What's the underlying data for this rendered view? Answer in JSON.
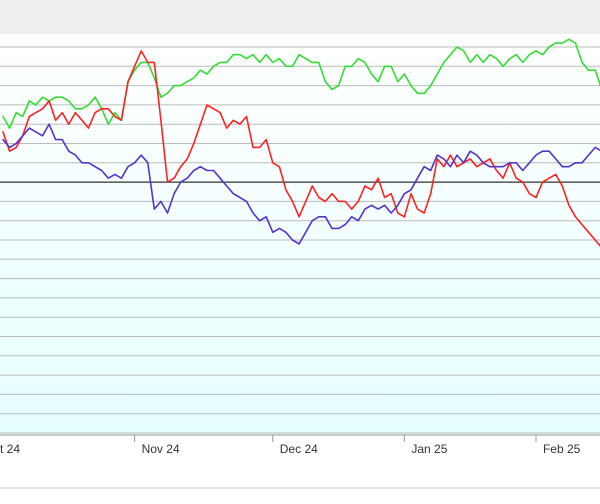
{
  "chart_data": {
    "type": "line",
    "title": "",
    "xlabel": "",
    "ylabel": "",
    "grid": true,
    "legend": "none",
    "x_tick_labels": [
      "ct 24",
      "Nov 24",
      "Dec 24",
      "Jan 25",
      "Feb 25"
    ],
    "x_tick_index": [
      0,
      20,
      41,
      61,
      81
    ],
    "ylim": [
      0,
      100
    ],
    "grid_values": [
      100,
      95,
      90,
      85,
      80,
      75,
      70,
      65,
      60,
      55,
      50,
      45,
      40,
      35,
      30,
      25,
      20,
      15,
      10,
      5,
      0
    ],
    "reference_line": 65,
    "colors": {
      "background_top": "#ffffff",
      "background_bottom": "#e6ffff",
      "grid": "#bbbbbb",
      "reference": "#333333",
      "header": "#eeeeee"
    },
    "series": [
      {
        "color": "#33dd33",
        "values": [
          82,
          79,
          83,
          82,
          86,
          85,
          87,
          86,
          87,
          87,
          86,
          84,
          84,
          85,
          87,
          84,
          80,
          83,
          81,
          91,
          94,
          96,
          96,
          92,
          87,
          88,
          90,
          90,
          91,
          92,
          94,
          93,
          95,
          96,
          96,
          98,
          98,
          97,
          98,
          96,
          98,
          96,
          97,
          95,
          95,
          98,
          97,
          96,
          96,
          91,
          89,
          90,
          95,
          95,
          97,
          96,
          93,
          91,
          95,
          95,
          91,
          93,
          90,
          88,
          88,
          90,
          93,
          96,
          98,
          100,
          99,
          96,
          98,
          96,
          98,
          97,
          95,
          97,
          98,
          96,
          98,
          99,
          98,
          100,
          101,
          101,
          102,
          101,
          96,
          94,
          94,
          89
        ]
      },
      {
        "color": "#ff2222",
        "values": [
          78,
          73,
          74,
          77,
          82,
          83,
          84,
          86,
          81,
          83,
          80,
          83,
          81,
          79,
          83,
          84,
          84,
          82,
          81,
          91,
          95,
          99,
          96,
          96,
          81,
          65,
          66,
          69,
          71,
          75,
          80,
          85,
          84,
          83,
          79,
          81,
          80,
          82,
          74,
          74,
          76,
          70,
          69,
          63,
          60,
          56,
          60,
          64,
          61,
          60,
          62,
          60,
          60,
          58,
          60,
          64,
          63,
          66,
          61,
          62,
          57,
          56,
          62,
          58,
          57,
          62,
          71,
          69,
          72,
          69,
          70,
          71,
          69,
          70,
          71,
          68,
          66,
          70,
          66,
          65,
          62,
          61,
          65,
          66,
          67,
          64,
          59,
          56,
          54,
          52,
          50,
          48
        ]
      },
      {
        "color": "#5533cc",
        "values": [
          76,
          74,
          75,
          77,
          79,
          78,
          77,
          80,
          76,
          76,
          73,
          72,
          70,
          70,
          69,
          68,
          66,
          67,
          66,
          69,
          70,
          72,
          70,
          58,
          60,
          57,
          62,
          65,
          66,
          68,
          69,
          68,
          68,
          66,
          64,
          62,
          61,
          60,
          57,
          55,
          56,
          52,
          53,
          52,
          50,
          49,
          52,
          55,
          56,
          56,
          53,
          53,
          54,
          56,
          55,
          58,
          59,
          58,
          59,
          57,
          59,
          62,
          63,
          66,
          69,
          68,
          72,
          71,
          69,
          72,
          70,
          73,
          72,
          70,
          69,
          69,
          69,
          70,
          70,
          68,
          70,
          72,
          73,
          73,
          71,
          69,
          69,
          70,
          70,
          72,
          74,
          73
        ]
      }
    ]
  }
}
